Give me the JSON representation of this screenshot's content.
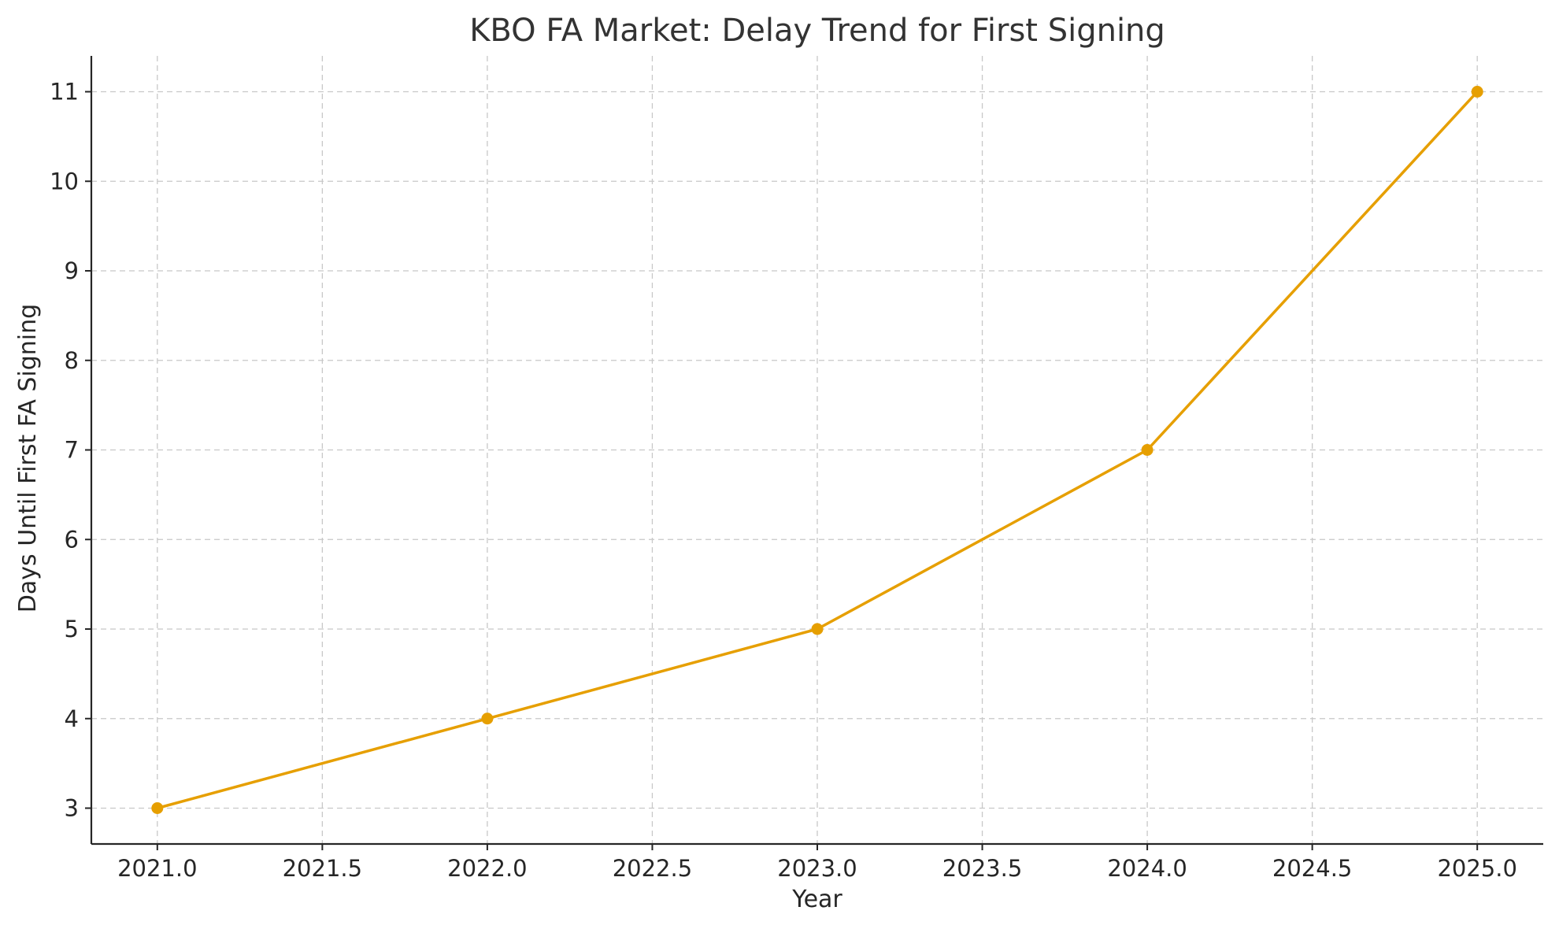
{
  "chart_data": {
    "type": "line",
    "title": "KBO FA Market: Delay Trend for First Signing",
    "xlabel": "Year",
    "ylabel": "Days Until First FA Signing",
    "x": [
      2021,
      2022,
      2023,
      2024,
      2025
    ],
    "series": [
      {
        "values": [
          3,
          4,
          5,
          7,
          11
        ]
      }
    ],
    "xlim": [
      2020.8,
      2025.2
    ],
    "ylim": [
      2.6,
      11.4
    ],
    "x_ticks": [
      2021.0,
      2021.5,
      2022.0,
      2022.5,
      2023.0,
      2023.5,
      2024.0,
      2024.5,
      2025.0
    ],
    "x_tick_labels": [
      "2021.0",
      "2021.5",
      "2022.0",
      "2022.5",
      "2023.0",
      "2023.5",
      "2024.0",
      "2024.5",
      "2025.0"
    ],
    "y_ticks": [
      3,
      4,
      5,
      6,
      7,
      8,
      9,
      10,
      11
    ],
    "y_tick_labels": [
      "3",
      "4",
      "5",
      "6",
      "7",
      "8",
      "9",
      "10",
      "11"
    ],
    "grid": true,
    "marker": "circle",
    "colors": {
      "line": "#E69F00",
      "grid": "#C8C8C8",
      "axis": "#262626"
    }
  }
}
